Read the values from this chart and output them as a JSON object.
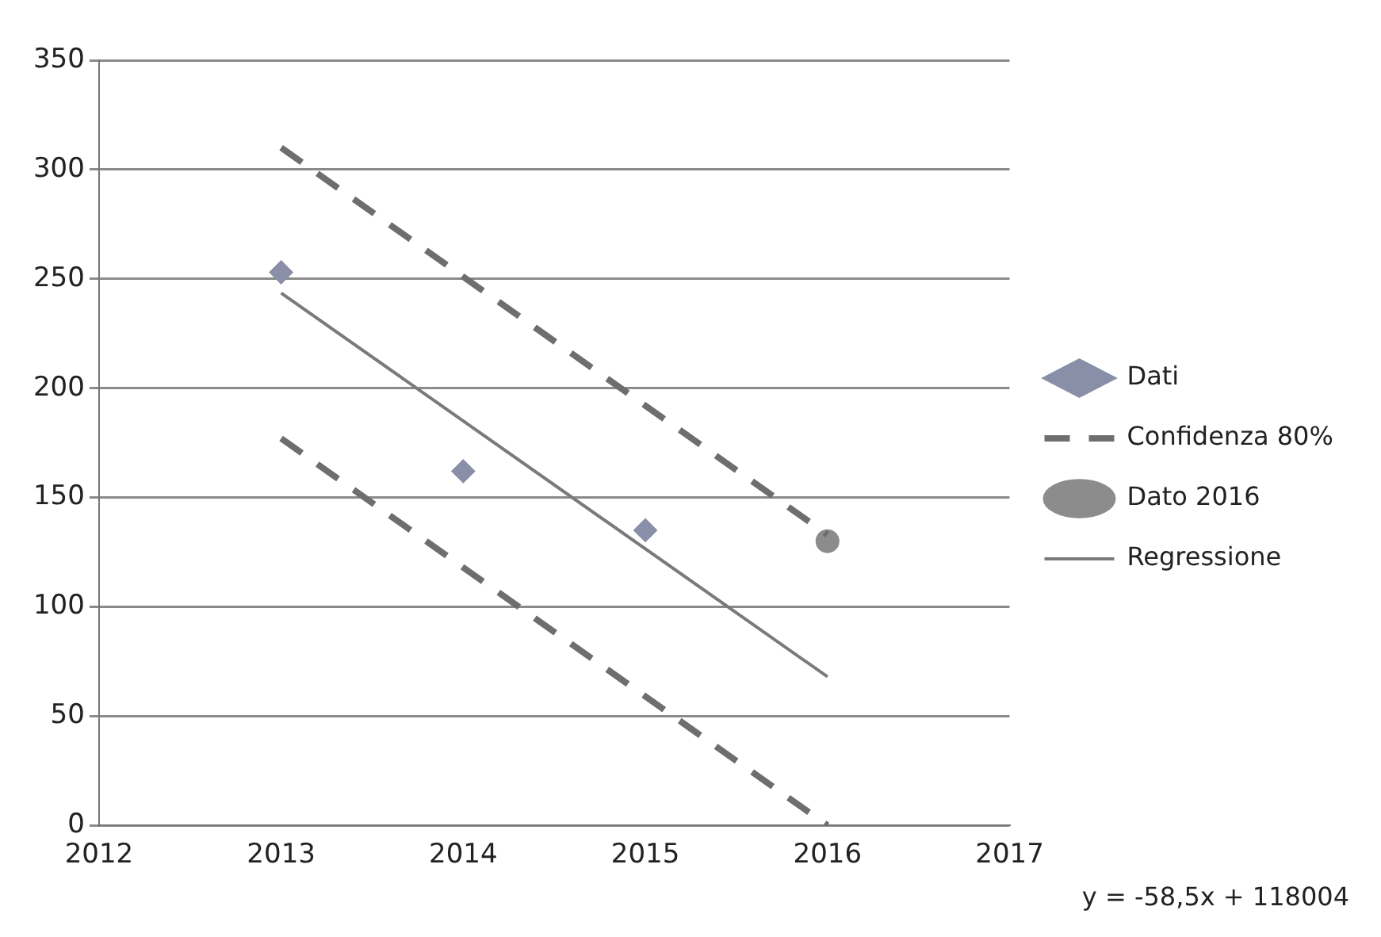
{
  "chart_data": {
    "type": "scatter",
    "xlim": [
      2012,
      2017
    ],
    "xticks": [
      2012,
      2013,
      2014,
      2015,
      2016,
      2017
    ],
    "ylim": [
      0,
      350
    ],
    "yticks": [
      0,
      50,
      100,
      150,
      200,
      250,
      300,
      350
    ],
    "grid": "y",
    "legend": "right",
    "annotations": [
      "y = -58,5x + 118004"
    ],
    "series": [
      {
        "name": "Dati",
        "type": "scatter",
        "marker": "diamond",
        "color": "#8a8fa8",
        "x": [
          2013,
          2014,
          2015
        ],
        "values": [
          253,
          162,
          135
        ]
      },
      {
        "name": "Confidenza 80%",
        "type": "line",
        "line_style": "dashed",
        "marker": "none",
        "color": "#6e6e6e",
        "x": [
          2013,
          2016
        ],
        "values": [
          310,
          133
        ]
      },
      {
        "type": "line",
        "line_style": "dashed",
        "marker": "none",
        "color": "#6e6e6e",
        "x": [
          2013,
          2016
        ],
        "values": [
          177,
          0
        ]
      },
      {
        "name": "Dato 2016",
        "type": "scatter",
        "marker": "circle",
        "color": "#8c8c8c",
        "x": [
          2016
        ],
        "values": [
          130
        ]
      },
      {
        "name": "Regressione",
        "type": "line",
        "line_style": "solid",
        "marker": "none",
        "color": "#7a7a7a",
        "x": [
          2013,
          2016
        ],
        "values": [
          243.5,
          68
        ]
      }
    ]
  }
}
